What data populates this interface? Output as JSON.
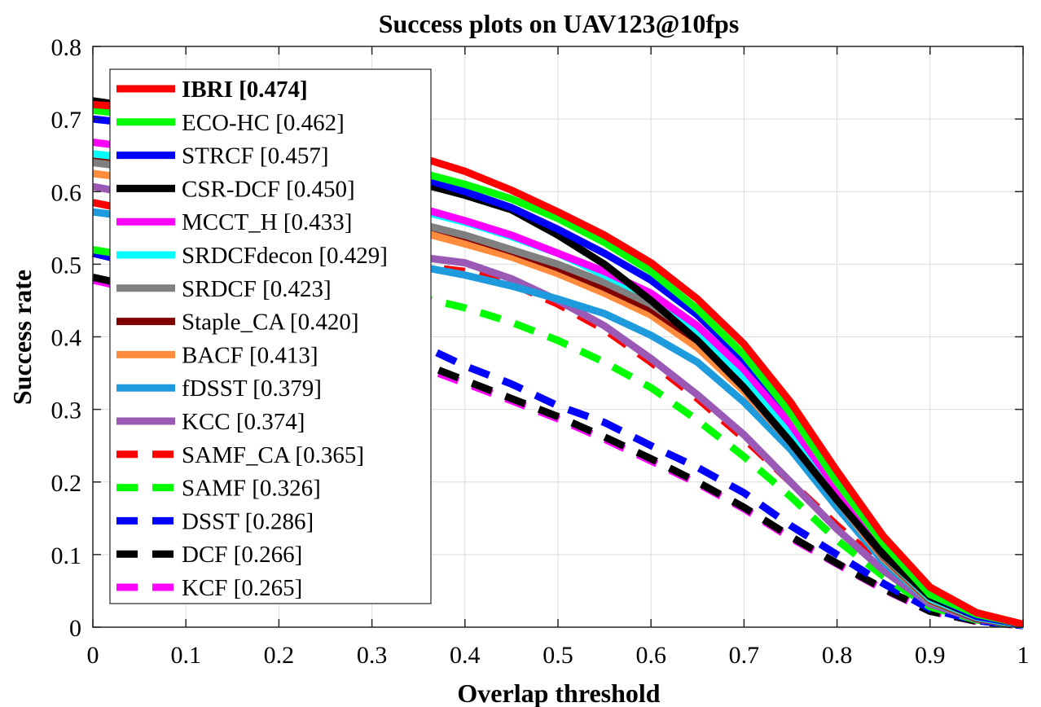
{
  "chart_data": {
    "type": "line",
    "title": "Success plots on UAV123@10fps",
    "xlabel": "Overlap threshold",
    "ylabel": "Success rate",
    "xlim": [
      0,
      1
    ],
    "ylim": [
      0,
      0.8
    ],
    "xticks": [
      "0",
      "0.1",
      "0.2",
      "0.3",
      "0.4",
      "0.5",
      "0.6",
      "0.7",
      "0.8",
      "0.9",
      "1"
    ],
    "yticks": [
      "0",
      "0.1",
      "0.2",
      "0.3",
      "0.4",
      "0.5",
      "0.6",
      "0.7",
      "0.8"
    ],
    "grid": true,
    "legend_position": "top-left",
    "x": [
      0,
      0.05,
      0.1,
      0.15,
      0.2,
      0.25,
      0.3,
      0.35,
      0.4,
      0.45,
      0.5,
      0.55,
      0.6,
      0.65,
      0.7,
      0.75,
      0.8,
      0.85,
      0.9,
      0.95,
      1
    ],
    "series": [
      {
        "name": "IBRI [0.474]",
        "color": "#ff0000",
        "dash": "solid",
        "bold": true,
        "values": [
          0.72,
          0.715,
          0.71,
          0.7,
          0.69,
          0.68,
          0.665,
          0.648,
          0.628,
          0.602,
          0.572,
          0.54,
          0.502,
          0.452,
          0.39,
          0.31,
          0.215,
          0.125,
          0.055,
          0.02,
          0.004
        ]
      },
      {
        "name": "ECO-HC [0.462]",
        "color": "#00ff00",
        "dash": "solid",
        "values": [
          0.712,
          0.705,
          0.698,
          0.688,
          0.676,
          0.662,
          0.645,
          0.627,
          0.61,
          0.59,
          0.563,
          0.53,
          0.49,
          0.438,
          0.375,
          0.295,
          0.2,
          0.115,
          0.045,
          0.018,
          0.004
        ]
      },
      {
        "name": "STRCF [0.457]",
        "color": "#0000ff",
        "dash": "solid",
        "values": [
          0.7,
          0.693,
          0.685,
          0.675,
          0.664,
          0.65,
          0.635,
          0.62,
          0.6,
          0.578,
          0.548,
          0.515,
          0.478,
          0.43,
          0.368,
          0.295,
          0.215,
          0.12,
          0.045,
          0.015,
          0.004
        ]
      },
      {
        "name": "CSR-DCF [0.450]",
        "color": "#000000",
        "dash": "solid",
        "values": [
          0.725,
          0.716,
          0.705,
          0.69,
          0.675,
          0.656,
          0.635,
          0.612,
          0.595,
          0.575,
          0.54,
          0.5,
          0.45,
          0.395,
          0.33,
          0.255,
          0.175,
          0.1,
          0.042,
          0.015,
          0.004
        ]
      },
      {
        "name": "MCCT_H [0.433]",
        "color": "#ff00ff",
        "dash": "solid",
        "values": [
          0.668,
          0.66,
          0.65,
          0.638,
          0.624,
          0.61,
          0.595,
          0.578,
          0.56,
          0.54,
          0.515,
          0.49,
          0.46,
          0.415,
          0.355,
          0.28,
          0.19,
          0.105,
          0.042,
          0.015,
          0.004
        ]
      },
      {
        "name": "SRDCFdecon [0.429]",
        "color": "#00ffff",
        "dash": "solid",
        "values": [
          0.652,
          0.645,
          0.637,
          0.627,
          0.616,
          0.603,
          0.589,
          0.574,
          0.558,
          0.538,
          0.515,
          0.485,
          0.455,
          0.405,
          0.345,
          0.27,
          0.185,
          0.1,
          0.04,
          0.014,
          0.003
        ]
      },
      {
        "name": "SRDCF [0.423]",
        "color": "#808080",
        "dash": "solid",
        "values": [
          0.64,
          0.632,
          0.623,
          0.612,
          0.6,
          0.587,
          0.572,
          0.556,
          0.54,
          0.52,
          0.5,
          0.475,
          0.445,
          0.4,
          0.34,
          0.265,
          0.18,
          0.098,
          0.038,
          0.013,
          0.003
        ]
      },
      {
        "name": "Staple_CA [0.420]",
        "color": "#800000",
        "dash": "solid",
        "values": [
          0.645,
          0.637,
          0.628,
          0.617,
          0.604,
          0.59,
          0.574,
          0.556,
          0.538,
          0.518,
          0.495,
          0.468,
          0.438,
          0.395,
          0.335,
          0.262,
          0.178,
          0.097,
          0.037,
          0.012,
          0.003
        ]
      },
      {
        "name": "BACF [0.413]",
        "color": "#ff8c3c",
        "dash": "solid",
        "values": [
          0.625,
          0.617,
          0.609,
          0.599,
          0.588,
          0.575,
          0.56,
          0.545,
          0.528,
          0.51,
          0.487,
          0.46,
          0.43,
          0.385,
          0.325,
          0.255,
          0.175,
          0.095,
          0.036,
          0.012,
          0.003
        ]
      },
      {
        "name": "fDSST [0.379]",
        "color": "#1e9bdc",
        "dash": "solid",
        "values": [
          0.572,
          0.564,
          0.556,
          0.546,
          0.535,
          0.523,
          0.51,
          0.497,
          0.485,
          0.47,
          0.452,
          0.432,
          0.402,
          0.365,
          0.31,
          0.245,
          0.165,
          0.09,
          0.035,
          0.012,
          0.003
        ]
      },
      {
        "name": "KCC [0.374]",
        "color": "#9b59b6",
        "dash": "solid",
        "values": [
          0.607,
          0.595,
          0.582,
          0.566,
          0.548,
          0.528,
          0.506,
          0.51,
          0.502,
          0.48,
          0.45,
          0.415,
          0.37,
          0.32,
          0.265,
          0.2,
          0.135,
          0.078,
          0.032,
          0.011,
          0.003
        ]
      },
      {
        "name": "SAMF_CA [0.365]",
        "color": "#ff0000",
        "dash": "dashed",
        "values": [
          0.585,
          0.572,
          0.559,
          0.545,
          0.53,
          0.514,
          0.497,
          0.498,
          0.49,
          0.473,
          0.445,
          0.41,
          0.365,
          0.315,
          0.26,
          0.2,
          0.14,
          0.085,
          0.036,
          0.012,
          0.003
        ]
      },
      {
        "name": "SAMF [0.326]",
        "color": "#00ff00",
        "dash": "dashed",
        "values": [
          0.52,
          0.51,
          0.5,
          0.488,
          0.476,
          0.463,
          0.45,
          0.455,
          0.44,
          0.42,
          0.395,
          0.365,
          0.33,
          0.285,
          0.235,
          0.18,
          0.12,
          0.07,
          0.028,
          0.01,
          0.003
        ]
      },
      {
        "name": "DSST [0.286]",
        "color": "#0000ff",
        "dash": "dashed",
        "values": [
          0.515,
          0.5,
          0.485,
          0.468,
          0.45,
          0.43,
          0.41,
          0.39,
          0.36,
          0.335,
          0.305,
          0.282,
          0.25,
          0.22,
          0.185,
          0.14,
          0.1,
          0.06,
          0.025,
          0.009,
          0.002
        ]
      },
      {
        "name": "DCF [0.266]",
        "color": "#000000",
        "dash": "dashed",
        "values": [
          0.482,
          0.468,
          0.454,
          0.438,
          0.42,
          0.4,
          0.38,
          0.365,
          0.34,
          0.315,
          0.29,
          0.262,
          0.232,
          0.2,
          0.165,
          0.125,
          0.088,
          0.053,
          0.022,
          0.008,
          0.002
        ]
      },
      {
        "name": "KCF [0.265]",
        "color": "#ff00ff",
        "dash": "dashed",
        "values": [
          0.478,
          0.464,
          0.45,
          0.434,
          0.416,
          0.396,
          0.376,
          0.36,
          0.336,
          0.312,
          0.287,
          0.259,
          0.229,
          0.198,
          0.163,
          0.123,
          0.087,
          0.052,
          0.022,
          0.008,
          0.002
        ]
      }
    ]
  }
}
